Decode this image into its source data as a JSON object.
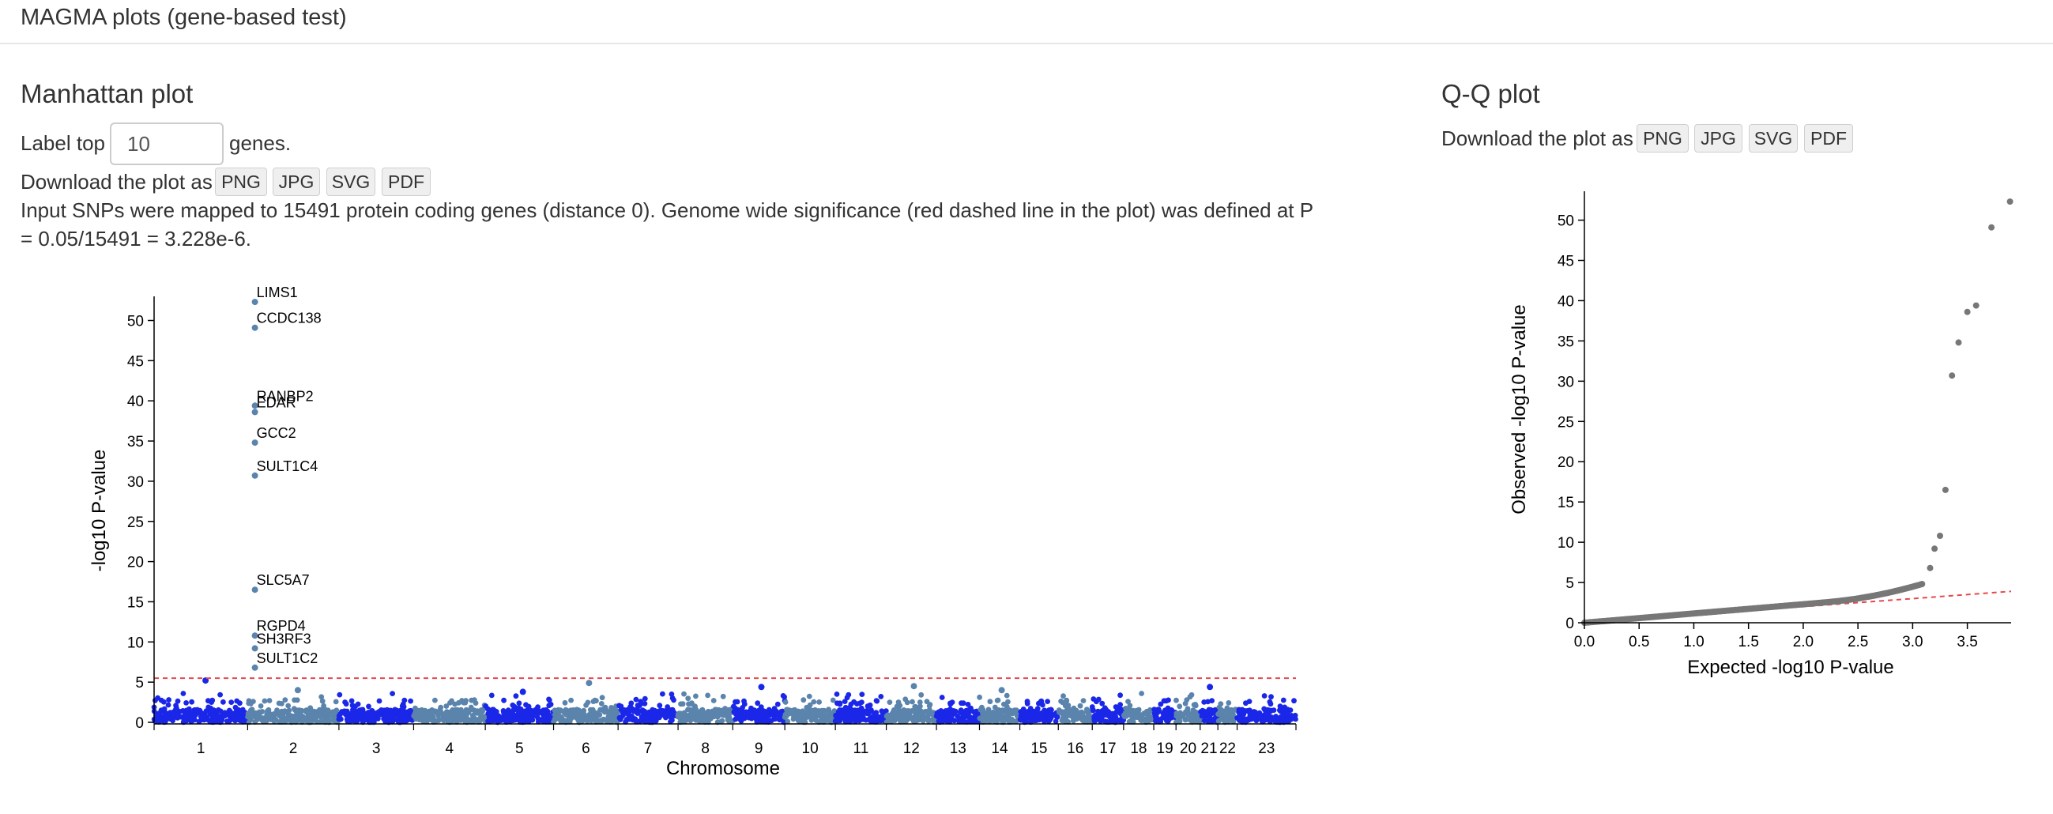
{
  "header": {
    "title": "MAGMA plots (gene-based test)"
  },
  "manhattan": {
    "heading": "Manhattan plot",
    "label_prefix": "Label top",
    "label_value": "10",
    "label_suffix": "genes.",
    "download_prefix": "Download the plot as",
    "buttons": [
      "PNG",
      "JPG",
      "SVG",
      "PDF"
    ],
    "description": "Input SNPs were mapped to 15491 protein coding genes (distance 0). Genome wide significance (red dashed line in the plot) was defined at P = 0.05/15491 = 3.228e-6."
  },
  "qq": {
    "heading": "Q-Q plot",
    "download_prefix": "Download the plot as",
    "buttons": [
      "PNG",
      "JPG",
      "SVG",
      "PDF"
    ]
  },
  "colors": {
    "odd_chromosome": "#1a27e8",
    "even_chromosome": "#5b84ad",
    "threshold_line": "#e8484a",
    "qq_points": "#777777",
    "qq_line": "#e8484a"
  },
  "chart_data": [
    {
      "type": "scatter",
      "name": "manhattan",
      "xlabel": "Chromosome",
      "ylabel": "-log10 P-value",
      "ylim": [
        0,
        53
      ],
      "yticks": [
        0,
        5,
        10,
        15,
        20,
        25,
        30,
        35,
        40,
        45,
        50
      ],
      "chromosomes": [
        "1",
        "2",
        "3",
        "4",
        "5",
        "6",
        "7",
        "8",
        "9",
        "10",
        "11",
        "12",
        "13",
        "14",
        "15",
        "16",
        "17",
        "18",
        "19",
        "20",
        "21",
        "22",
        "23"
      ],
      "threshold": 5.49,
      "labeled_genes": [
        {
          "gene": "LIMS1",
          "chr": "2",
          "value": 52.3
        },
        {
          "gene": "CCDC138",
          "chr": "2",
          "value": 49.1
        },
        {
          "gene": "RANBP2",
          "chr": "2",
          "value": 39.4
        },
        {
          "gene": "EDAR",
          "chr": "2",
          "value": 38.6
        },
        {
          "gene": "GCC2",
          "chr": "2",
          "value": 34.8
        },
        {
          "gene": "SULT1C4",
          "chr": "2",
          "value": 30.7
        },
        {
          "gene": "SLC5A7",
          "chr": "2",
          "value": 16.5
        },
        {
          "gene": "RGPD4",
          "chr": "2",
          "value": 10.8
        },
        {
          "gene": "SH3RF3",
          "chr": "2",
          "value": 9.2
        },
        {
          "gene": "SULT1C2",
          "chr": "2",
          "value": 6.8
        }
      ],
      "peaks": [
        {
          "chr": "1",
          "value": 5.2
        },
        {
          "chr": "2",
          "value": 4.0
        },
        {
          "chr": "5",
          "value": 3.8
        },
        {
          "chr": "6",
          "value": 4.9
        },
        {
          "chr": "9",
          "value": 4.4
        },
        {
          "chr": "12",
          "value": 4.5
        },
        {
          "chr": "14",
          "value": 4.0
        },
        {
          "chr": "21",
          "value": 4.4
        }
      ]
    },
    {
      "type": "scatter",
      "name": "qq",
      "xlabel": "Expected -log10 P-value",
      "ylabel": "Observed -log10 P-value",
      "xlim": [
        0,
        3.9
      ],
      "ylim": [
        0,
        53
      ],
      "xticks": [
        "0.0",
        "0.5",
        "1.0",
        "1.5",
        "2.0",
        "2.5",
        "3.0",
        "3.5"
      ],
      "yticks": [
        0,
        5,
        10,
        15,
        20,
        25,
        30,
        35,
        40,
        45,
        50
      ],
      "tail_points": [
        {
          "x": 3.89,
          "y": 52.3
        },
        {
          "x": 3.72,
          "y": 49.1
        },
        {
          "x": 3.58,
          "y": 39.4
        },
        {
          "x": 3.5,
          "y": 38.6
        },
        {
          "x": 3.42,
          "y": 34.8
        },
        {
          "x": 3.36,
          "y": 30.7
        },
        {
          "x": 3.3,
          "y": 16.5
        },
        {
          "x": 3.25,
          "y": 10.8
        },
        {
          "x": 3.2,
          "y": 9.2
        },
        {
          "x": 3.16,
          "y": 6.8
        }
      ]
    }
  ]
}
